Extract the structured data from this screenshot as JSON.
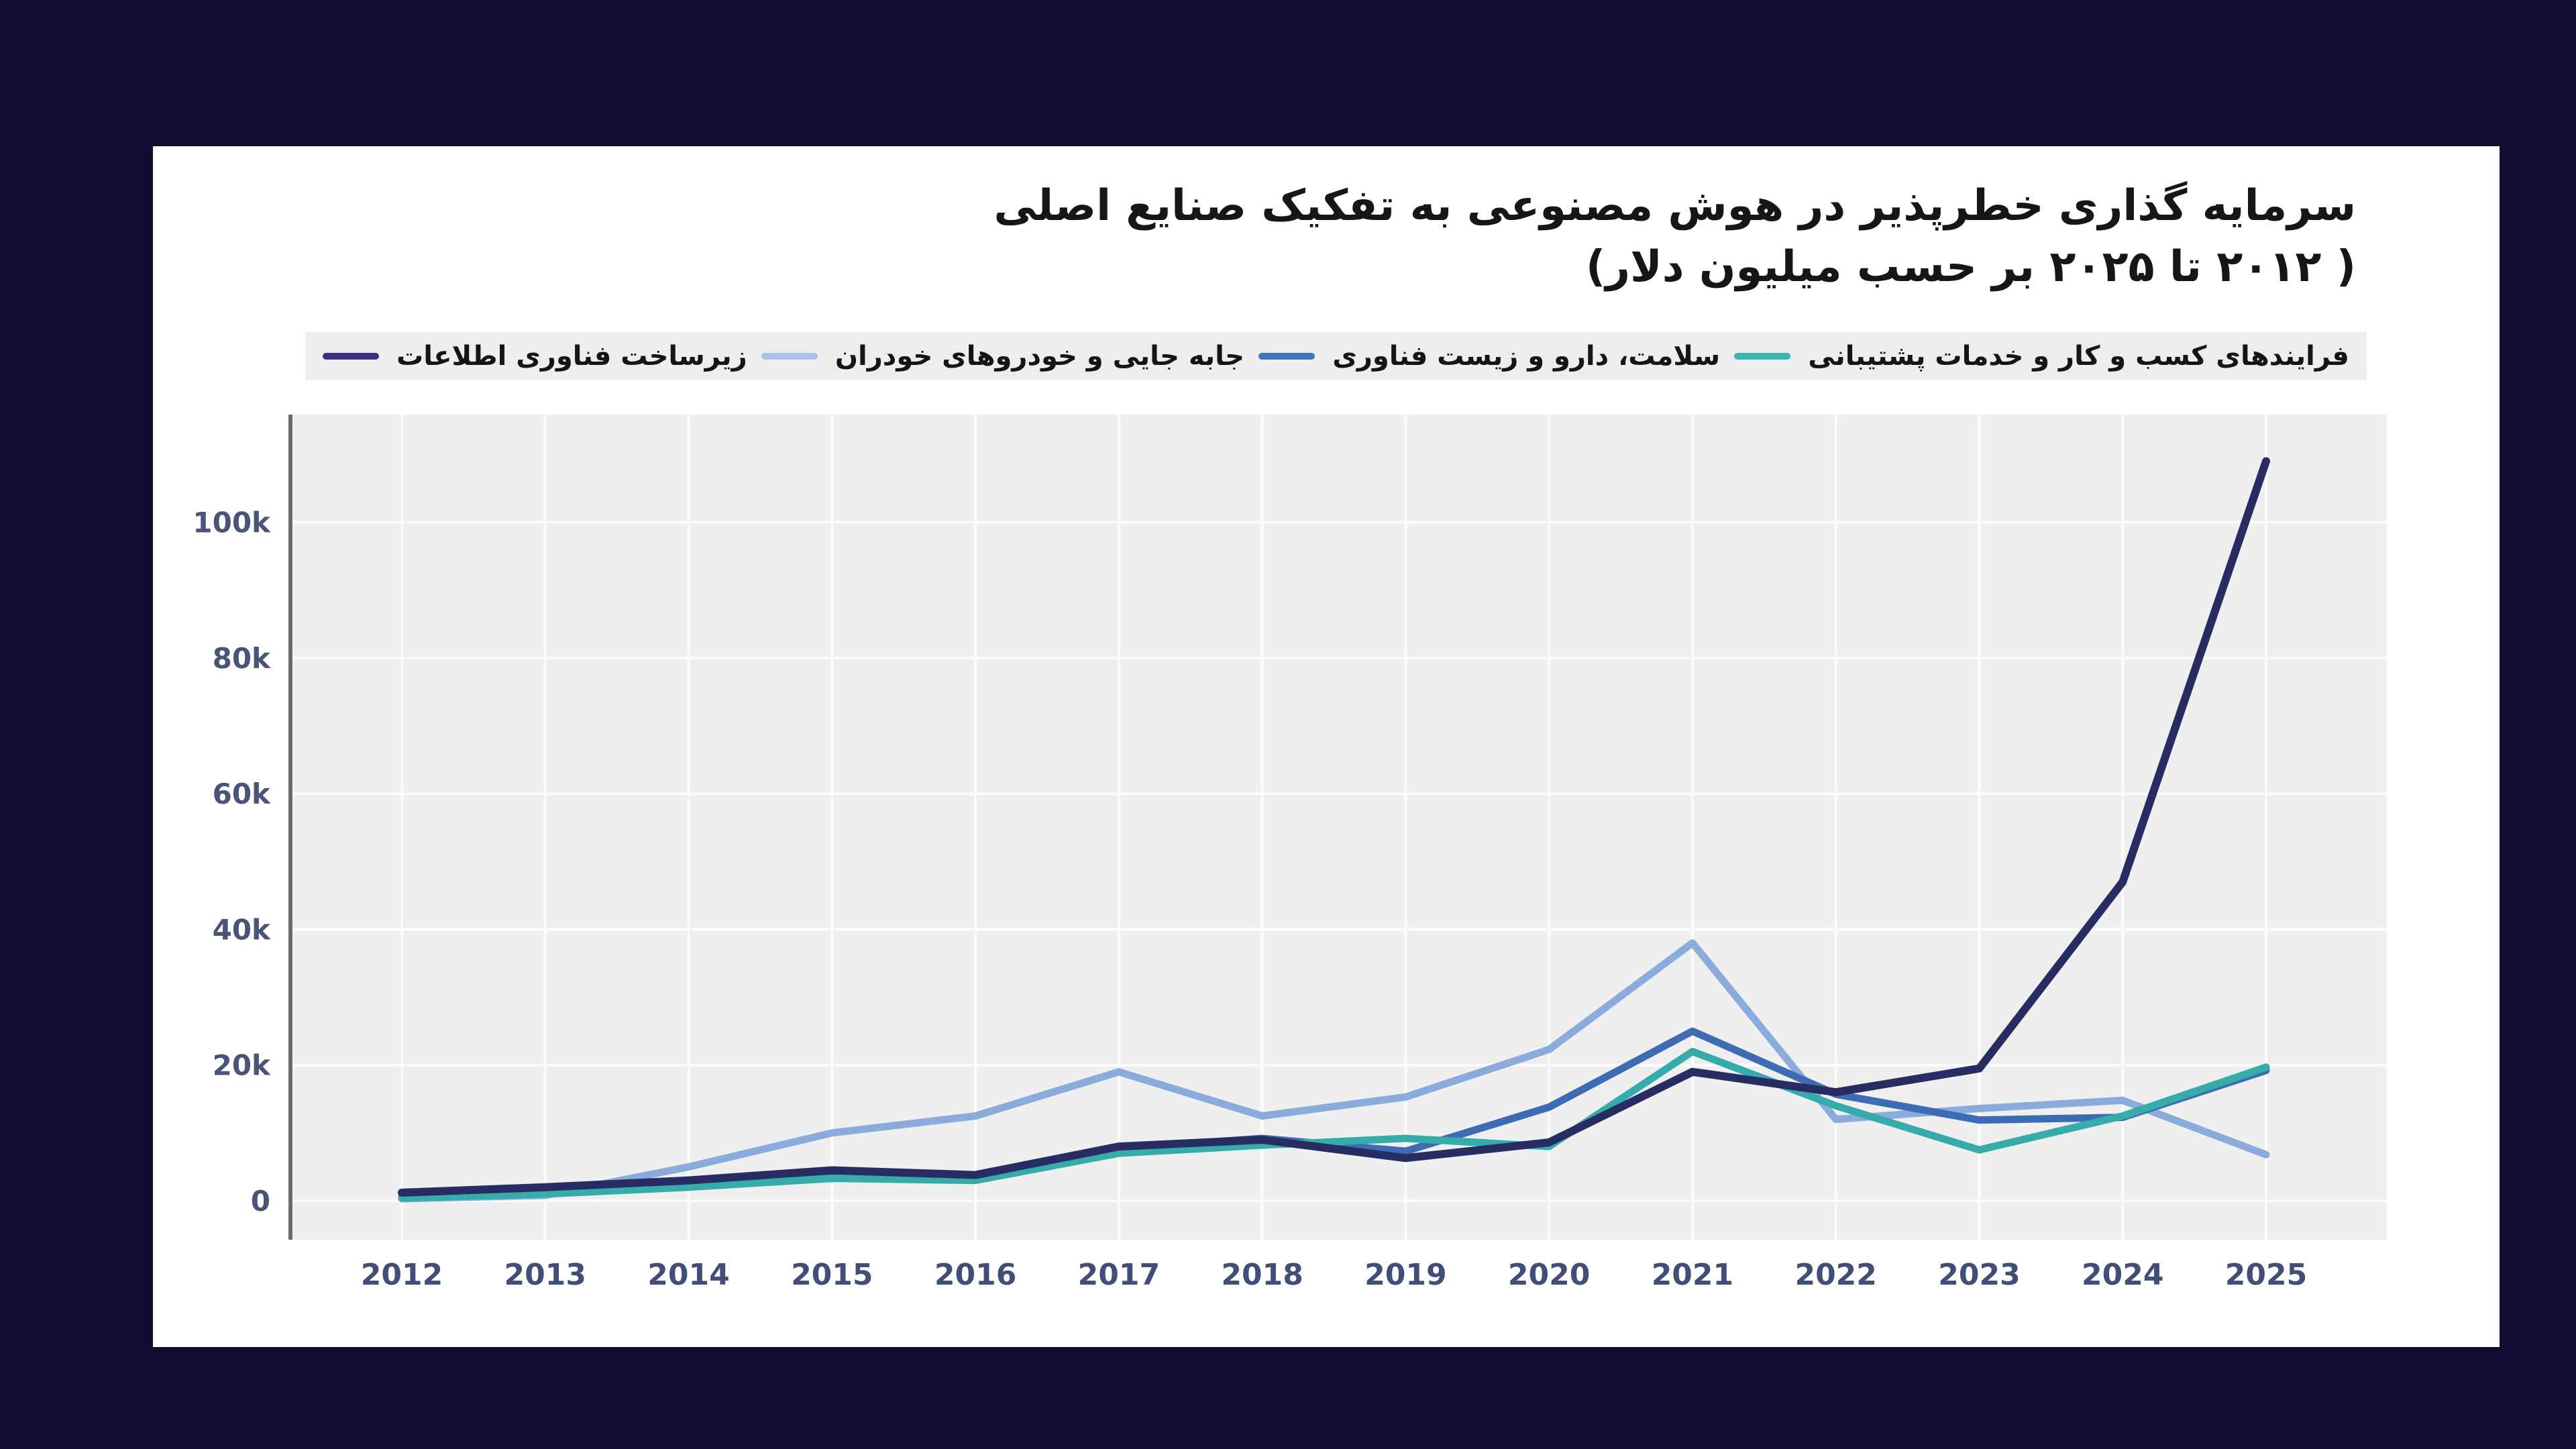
{
  "page": {
    "background_color": "#130d34",
    "card_color": "#ffffff"
  },
  "title": {
    "line1": "سرمایه گذاری خطرپذیر در هوش مصنوعی به تفکیک صنایع اصلی",
    "line2": "( ۲۰۱۲ تا ۲۰۲۵ بر حسب میلیون دلار)"
  },
  "chart_data": {
    "type": "line",
    "title": "سرمایه گذاری خطرپذیر در هوش مصنوعی به تفکیک صنایع اصلی ( ۲۰۱۲ تا ۲۰۲۵ بر حسب میلیون دلار)",
    "x": [
      2012,
      2013,
      2014,
      2015,
      2016,
      2017,
      2018,
      2019,
      2020,
      2021,
      2022,
      2023,
      2024,
      2025
    ],
    "x_tick_labels": [
      "2012",
      "2013",
      "2014",
      "2015",
      "2016",
      "2017",
      "2018",
      "2019",
      "2020",
      "2021",
      "2022",
      "2023",
      "2024",
      "2025"
    ],
    "y_ticks_k": [
      0,
      20,
      40,
      60,
      80,
      100
    ],
    "y_tick_labels": [
      "0",
      "20k",
      "40k",
      "60k",
      "80k",
      "100k"
    ],
    "ylim_k": [
      0,
      116
    ],
    "grid": true,
    "legend_position": "top",
    "plot_background": "#efeff0",
    "gridline_color": "#fbfbfb",
    "axis_line_color": "#6b6b6b",
    "draw_order": [
      1,
      2,
      3,
      0
    ],
    "series": [
      {
        "name": "زیرساخت فناوری اطلاعات",
        "color": "#272d62",
        "swatch_color": "#32347e",
        "values_k": [
          1.2,
          2,
          3,
          4.5,
          3.8,
          8,
          9,
          6.3,
          8.6,
          19,
          16,
          19.5,
          47,
          109
        ]
      },
      {
        "name": "جابه جایی و خودروهای خودران",
        "color": "#8aabdc",
        "swatch_color": "#a9c3e6",
        "values_k": [
          0.3,
          0.8,
          5,
          10,
          12.5,
          19,
          12.5,
          15.3,
          22.3,
          38,
          12,
          13.6,
          14.8,
          6.8
        ]
      },
      {
        "name": "سلامت، دارو و زیست فناوری",
        "color": "#3d6cb4",
        "swatch_color": "#3f74bd",
        "values_k": [
          0.6,
          1.2,
          2.3,
          4,
          3.3,
          7.7,
          9.2,
          7.3,
          13.8,
          25,
          15.7,
          11.9,
          12.3,
          19.2
        ]
      },
      {
        "name": "فرایندهای کسب و کار و خدمات پشتیبانی",
        "color": "#36acaa",
        "swatch_color": "#3cb5b2",
        "values_k": [
          0.4,
          1,
          2,
          3.3,
          3,
          7,
          8.2,
          9.2,
          8,
          22,
          14,
          7.5,
          12.5,
          19.7
        ]
      }
    ]
  }
}
